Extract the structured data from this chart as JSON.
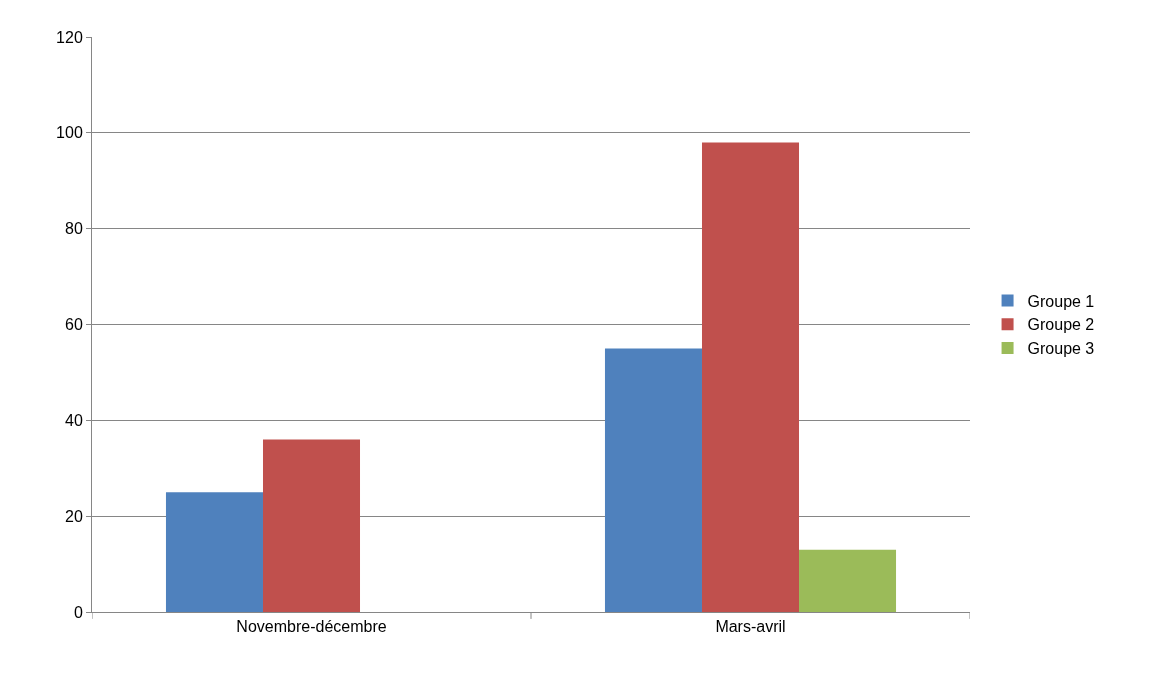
{
  "chart_data": {
    "type": "bar",
    "categories": [
      "Novembre-décembre",
      "Mars-avril"
    ],
    "series": [
      {
        "name": "Groupe 1",
        "color": "#4f81bd",
        "values": [
          25,
          55
        ]
      },
      {
        "name": "Groupe 2",
        "color": "#c0504d",
        "values": [
          36,
          98
        ]
      },
      {
        "name": "Groupe 3",
        "color": "#9bbb59",
        "values": [
          0,
          13
        ]
      }
    ],
    "ylim": [
      0,
      120
    ],
    "yticks": [
      0,
      20,
      40,
      60,
      80,
      100,
      120
    ],
    "grid": "y",
    "legend": "right"
  }
}
